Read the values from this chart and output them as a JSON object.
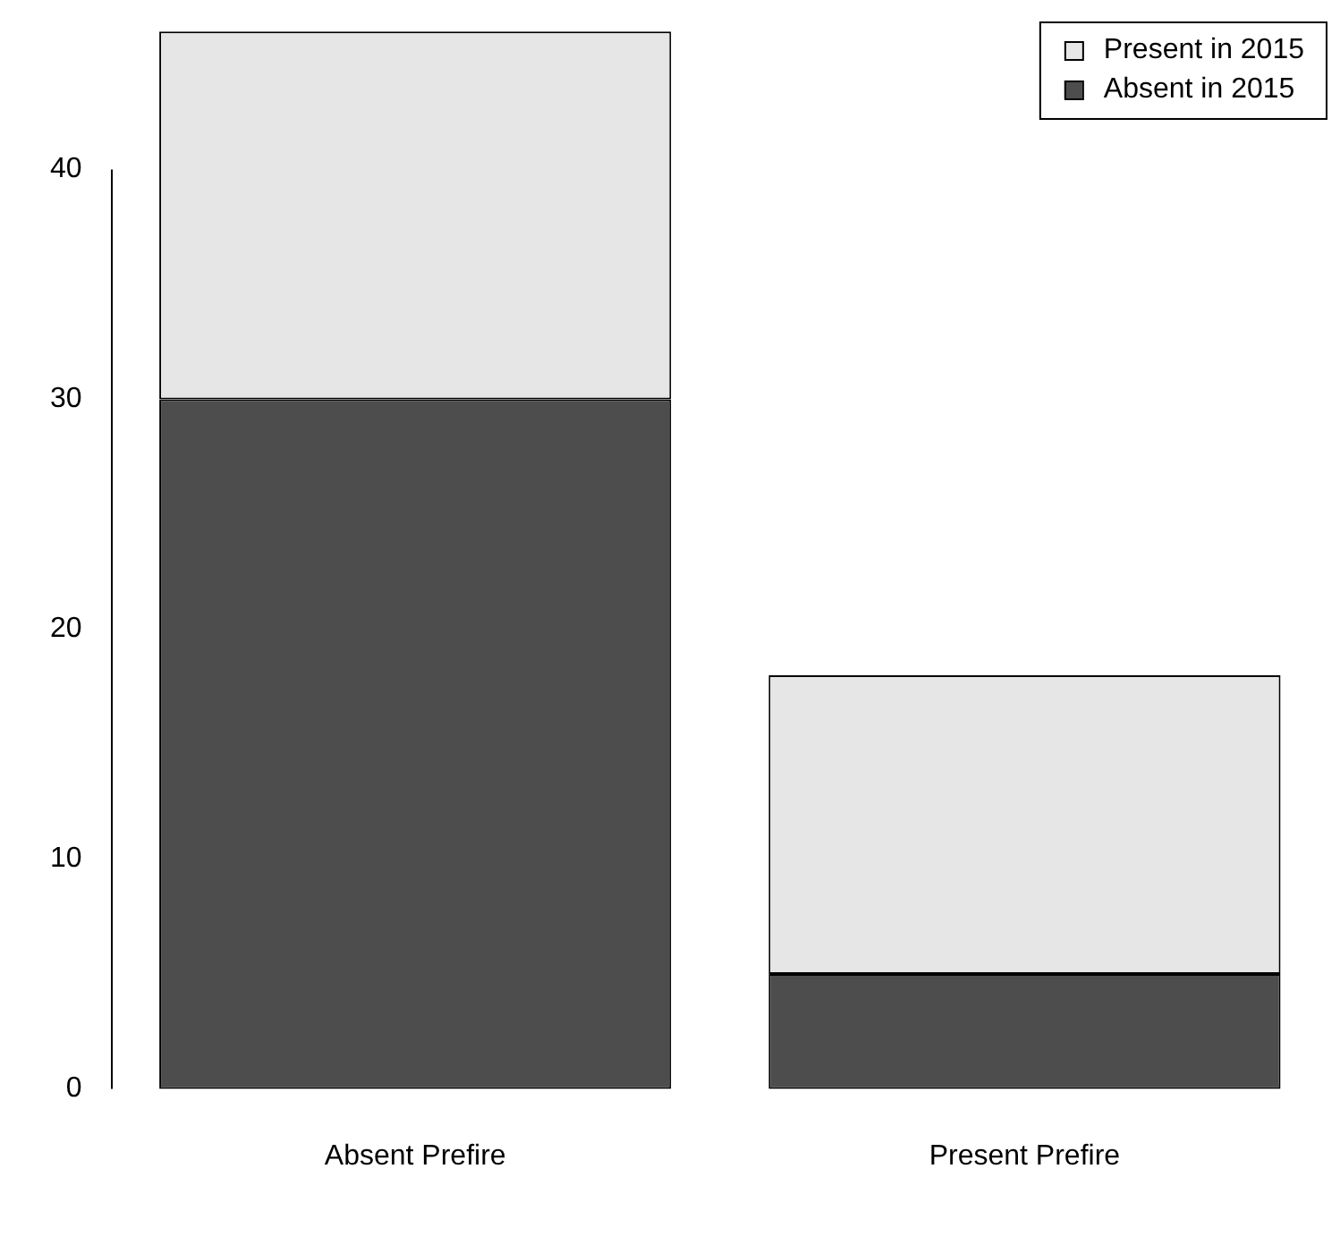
{
  "chart_data": {
    "type": "bar",
    "stacked": true,
    "categories": [
      "Absent Prefire",
      "Present Prefire"
    ],
    "series": [
      {
        "name": "Absent in 2015",
        "color": "#4d4d4d",
        "values": [
          30,
          5
        ]
      },
      {
        "name": "Present in 2015",
        "color": "#e6e6e6",
        "values": [
          16,
          13
        ]
      }
    ],
    "ylim": [
      0,
      46
    ],
    "yticks": [
      0,
      10,
      20,
      30,
      40
    ],
    "grid": false,
    "legend": "top right"
  }
}
